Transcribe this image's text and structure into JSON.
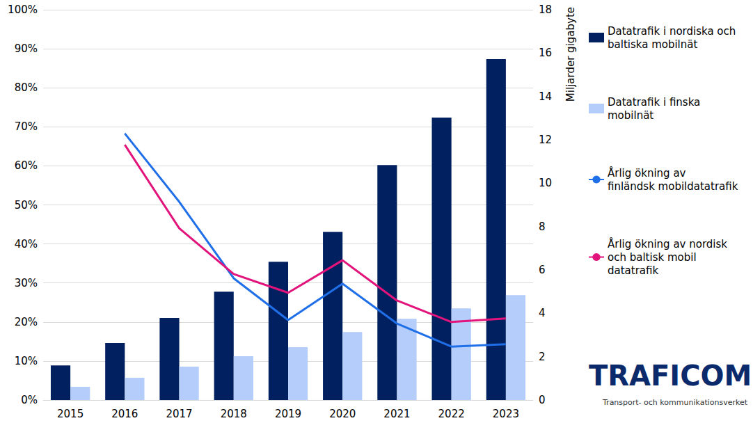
{
  "chart_data": {
    "type": "bar",
    "y2_label": "Miljarder gigabyte",
    "annotations": [
      "TRAFICOM",
      "Transport- och kommunikationsverket"
    ],
    "categories": [
      "2015",
      "2016",
      "2017",
      "2018",
      "2019",
      "2020",
      "2021",
      "2022",
      "2023"
    ],
    "series": [
      {
        "name": "Datatrafik i nordiska och baltiska mobilnät",
        "type": "bar",
        "axis": "y2",
        "color": "#002060",
        "values": [
          1.6,
          2.63,
          3.79,
          5.0,
          6.38,
          7.76,
          10.84,
          13.03,
          15.72
        ]
      },
      {
        "name": "Datatrafik i finska mobilnät",
        "type": "bar",
        "axis": "y2",
        "color": "#b4cdfa",
        "values": [
          0.61,
          1.03,
          1.54,
          2.02,
          2.44,
          3.14,
          3.75,
          4.23,
          4.84
        ]
      },
      {
        "name": "Årlig ökning av finländsk mobildatatrafik",
        "type": "line",
        "color": "#1f6fe8",
        "values": [
          null,
          68.3,
          50.8,
          31.2,
          20.5,
          29.8,
          19.6,
          13.7,
          14.3
        ]
      },
      {
        "name": "Årlig ökning av nordisk och baltisk mobil datatrafik",
        "type": "line",
        "color": "#e2137b",
        "values": [
          null,
          65.4,
          44.0,
          32.3,
          27.5,
          35.8,
          25.5,
          20.0,
          20.9
        ]
      }
    ],
    "ylim": [
      0,
      100
    ],
    "yticks": [
      {
        "value": 0,
        "label": "0%"
      },
      {
        "value": 10,
        "label": "10%"
      },
      {
        "value": 20,
        "label": "20%"
      },
      {
        "value": 30,
        "label": "30%"
      },
      {
        "value": 40,
        "label": "40%"
      },
      {
        "value": 50,
        "label": "50%"
      },
      {
        "value": 60,
        "label": "60%"
      },
      {
        "value": 70,
        "label": "70%"
      },
      {
        "value": 80,
        "label": "80%"
      },
      {
        "value": 90,
        "label": "90%"
      },
      {
        "value": 100,
        "label": "100%"
      }
    ],
    "y2lim": [
      0,
      18
    ],
    "y2ticks": [
      0,
      2,
      4,
      6,
      8,
      10,
      12,
      14,
      16,
      18
    ],
    "grid": true,
    "legend": "right"
  }
}
